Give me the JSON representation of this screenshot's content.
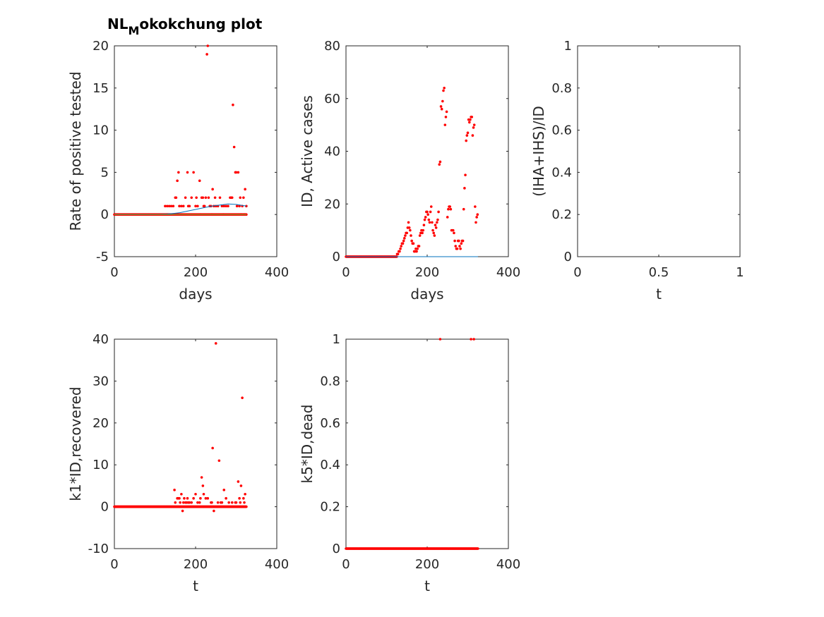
{
  "figure": {
    "title_main": "NL",
    "title_sub": "M",
    "title_rest": "okokchung plot",
    "colors": {
      "points": "#ff0000",
      "fit": "#0072bd",
      "axis": "#262626",
      "baseline": "#77ac30"
    }
  },
  "chart_data": [
    {
      "id": "rate",
      "type": "scatter",
      "xlabel": "days",
      "ylabel": "Rate of positive tested",
      "xlim": [
        0,
        400
      ],
      "ylim": [
        -5,
        20
      ],
      "xticks": [
        0,
        200,
        400
      ],
      "yticks": [
        -5,
        0,
        5,
        10,
        15,
        20
      ],
      "xtick_labels": [
        "0",
        "200",
        "400"
      ],
      "ytick_labels": [
        "-5",
        "0",
        "5",
        "10",
        "15",
        "20"
      ],
      "series": [
        {
          "kind": "points",
          "x_start": 0,
          "x_end": 130,
          "y": 0
        },
        {
          "kind": "points",
          "x": [
            125,
            130,
            135,
            140,
            145,
            150,
            152,
            155,
            158,
            160,
            165,
            170,
            175,
            180,
            182,
            185,
            190,
            195,
            200,
            202,
            205,
            210,
            212,
            215,
            218,
            220,
            222,
            225,
            228,
            230,
            232,
            235,
            238,
            240,
            242,
            245,
            248,
            250,
            255,
            260,
            265,
            268,
            270,
            275,
            280,
            285,
            288,
            290,
            292,
            295,
            298,
            300,
            302,
            305,
            308,
            310,
            312,
            315,
            318,
            320,
            322,
            325
          ],
          "y": [
            1,
            1,
            1,
            1,
            1,
            2,
            2,
            4,
            5,
            1,
            1,
            1,
            2,
            5,
            1,
            1,
            2,
            5,
            1,
            2,
            1,
            4,
            0,
            2,
            2,
            1,
            1,
            2,
            19,
            20,
            2,
            1,
            1,
            0,
            3,
            1,
            2,
            1,
            1,
            2,
            1,
            0,
            1,
            1,
            1,
            2,
            2,
            2,
            13,
            8,
            5,
            5,
            1,
            5,
            1,
            2,
            0,
            1,
            2,
            0,
            3,
            1
          ]
        },
        {
          "kind": "points",
          "x_start": 130,
          "x_end": 325,
          "y": 0
        },
        {
          "kind": "line",
          "color": "fit",
          "x": [
            0,
            100,
            130,
            160,
            200,
            240,
            280,
            300,
            325
          ],
          "y": [
            0,
            0,
            0.05,
            0.2,
            0.6,
            1.0,
            1.25,
            1.2,
            1.0
          ]
        },
        {
          "kind": "line",
          "color": "baseline",
          "x": [
            0,
            325
          ],
          "y": [
            0,
            0
          ]
        }
      ]
    },
    {
      "id": "active",
      "type": "scatter",
      "xlabel": "days",
      "ylabel": "ID, Active cases",
      "xlim": [
        0,
        400
      ],
      "ylim": [
        0,
        80
      ],
      "xticks": [
        0,
        200,
        400
      ],
      "yticks": [
        0,
        20,
        40,
        60,
        80
      ],
      "xtick_labels": [
        "0",
        "200",
        "400"
      ],
      "ytick_labels": [
        "0",
        "20",
        "40",
        "60",
        "80"
      ],
      "series": [
        {
          "kind": "points",
          "x_start": 0,
          "x_end": 125,
          "y": 0
        },
        {
          "kind": "points",
          "x": [
            126,
            128,
            130,
            132,
            134,
            136,
            138,
            140,
            142,
            144,
            146,
            148,
            150,
            152,
            154,
            156,
            158,
            160,
            162,
            164,
            166,
            168,
            170,
            172,
            174,
            176,
            178,
            180,
            182,
            184,
            186,
            188,
            190,
            192,
            194,
            196,
            198,
            200,
            202,
            204,
            206,
            208,
            210,
            212,
            214,
            216,
            218,
            220,
            222,
            224,
            226,
            228,
            230,
            232,
            234,
            236,
            238,
            240,
            242,
            244,
            246,
            248,
            250,
            252,
            254,
            256,
            258,
            260,
            262,
            264,
            266,
            268,
            270,
            272,
            274,
            276,
            278,
            280,
            282,
            284,
            286,
            288,
            290,
            292,
            294,
            296,
            298,
            300,
            302,
            304,
            306,
            308,
            310,
            312,
            314,
            316,
            318,
            320,
            322,
            324
          ],
          "y": [
            1,
            1,
            2,
            2,
            3,
            4,
            5,
            5,
            6,
            7,
            8,
            9,
            9,
            11,
            13,
            11,
            10,
            8,
            6,
            5,
            5,
            2,
            2,
            3,
            2,
            3,
            4,
            4,
            8,
            9,
            10,
            9,
            10,
            12,
            14,
            15,
            17,
            17,
            16,
            14,
            13,
            17,
            19,
            13,
            10,
            9,
            8,
            12,
            11,
            13,
            14,
            17,
            35,
            36,
            57,
            56,
            59,
            63,
            64,
            50,
            53,
            55,
            15,
            18,
            19,
            19,
            18,
            10,
            10,
            10,
            9,
            6,
            4,
            3,
            3,
            6,
            6,
            4,
            3,
            5,
            6,
            6,
            18,
            26,
            31,
            44,
            46,
            47,
            52,
            51,
            52,
            53,
            53,
            46,
            49,
            50,
            19,
            13,
            15,
            16
          ]
        },
        {
          "kind": "line",
          "color": "fit",
          "x": [
            0,
            325
          ],
          "y": [
            0,
            0
          ]
        }
      ]
    },
    {
      "id": "ratio",
      "type": "scatter",
      "xlabel": "t",
      "ylabel": "(IHA+IHS)/ID",
      "xlim": [
        0,
        1
      ],
      "ylim": [
        0,
        1
      ],
      "xticks": [
        0,
        0.5,
        1
      ],
      "yticks": [
        0,
        0.2,
        0.4,
        0.6,
        0.8,
        1
      ],
      "xtick_labels": [
        "0",
        "0.5",
        "1"
      ],
      "ytick_labels": [
        "0",
        "0.2",
        "0.4",
        "0.6",
        "0.8",
        "1"
      ],
      "series": []
    },
    {
      "id": "recovered",
      "type": "scatter",
      "xlabel": "t",
      "ylabel": "k1*ID,recovered",
      "xlim": [
        0,
        400
      ],
      "ylim": [
        -10,
        40
      ],
      "xticks": [
        0,
        200,
        400
      ],
      "yticks": [
        -10,
        0,
        10,
        20,
        30,
        40
      ],
      "xtick_labels": [
        "0",
        "200",
        "400"
      ],
      "ytick_labels": [
        "-10",
        "0",
        "10",
        "20",
        "30",
        "40"
      ],
      "series": [
        {
          "kind": "points",
          "x_start": 0,
          "x_end": 325,
          "y": 0
        },
        {
          "kind": "points",
          "x": [
            148,
            150,
            155,
            158,
            160,
            162,
            165,
            168,
            170,
            172,
            175,
            178,
            180,
            182,
            185,
            190,
            195,
            200,
            205,
            210,
            212,
            215,
            218,
            220,
            225,
            230,
            238,
            240,
            242,
            245,
            250,
            255,
            258,
            262,
            265,
            270,
            275,
            282,
            290,
            298,
            300,
            305,
            308,
            310,
            312,
            315,
            318,
            320,
            322
          ],
          "y": [
            4,
            1,
            2,
            2,
            2,
            1,
            3,
            -1,
            1,
            2,
            1,
            1,
            2,
            1,
            1,
            1,
            2,
            3,
            1,
            1,
            2,
            7,
            5,
            3,
            2,
            2,
            1,
            1,
            14,
            -1,
            39,
            1,
            11,
            1,
            1,
            4,
            2,
            1,
            1,
            1,
            1,
            6,
            2,
            1,
            5,
            26,
            2,
            1,
            3
          ]
        }
      ]
    },
    {
      "id": "dead",
      "type": "scatter",
      "xlabel": "t",
      "ylabel": "k5*ID,dead",
      "xlim": [
        0,
        400
      ],
      "ylim": [
        0,
        1
      ],
      "xticks": [
        0,
        200,
        400
      ],
      "yticks": [
        0,
        0.2,
        0.4,
        0.6,
        0.8,
        1
      ],
      "xtick_labels": [
        "0",
        "200",
        "400"
      ],
      "ytick_labels": [
        "0",
        "0.2",
        "0.4",
        "0.6",
        "0.8",
        "1"
      ],
      "series": [
        {
          "kind": "points",
          "x_start": 0,
          "x_end": 325,
          "y": 0
        },
        {
          "kind": "points",
          "x": [
            232,
            308,
            315
          ],
          "y": [
            1,
            1,
            1
          ]
        }
      ]
    }
  ]
}
